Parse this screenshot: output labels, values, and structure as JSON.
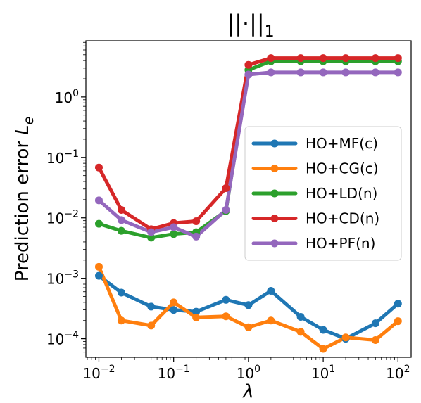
{
  "chart_data": {
    "type": "line",
    "title": "||·||",
    "title_subscript": "1",
    "xlabel": "λ",
    "ylabel": "Prediction error",
    "ylabel_symbol": "L",
    "ylabel_subscript": "e",
    "x_scale": "log",
    "y_scale": "log",
    "xlim": [
      0.0067,
      150
    ],
    "ylim": [
      4.93e-05,
      8.5
    ],
    "grid": false,
    "legend_position": "center-right",
    "x": [
      0.01,
      0.02,
      0.05,
      0.1,
      0.2,
      0.5,
      1,
      2,
      5,
      10,
      20,
      50,
      100
    ],
    "x_ticks": [
      {
        "value": 0.01,
        "base": "10",
        "exp": "−2"
      },
      {
        "value": 0.1,
        "base": "10",
        "exp": "−1"
      },
      {
        "value": 1,
        "base": "10",
        "exp": "0"
      },
      {
        "value": 10,
        "base": "10",
        "exp": "1"
      },
      {
        "value": 100,
        "base": "10",
        "exp": "2"
      }
    ],
    "y_ticks": [
      {
        "value": 0.0001,
        "base": "10",
        "exp": "−4"
      },
      {
        "value": 0.001,
        "base": "10",
        "exp": "−3"
      },
      {
        "value": 0.01,
        "base": "10",
        "exp": "−2"
      },
      {
        "value": 0.1,
        "base": "10",
        "exp": "−1"
      },
      {
        "value": 1,
        "base": "10",
        "exp": "0"
      }
    ],
    "series": [
      {
        "name": "HO+MF(c)",
        "color": "#1f77b4",
        "values": [
          0.0011,
          0.00058,
          0.00034,
          0.0003,
          0.00028,
          0.00044,
          0.00036,
          0.00062,
          0.00023,
          0.00014,
          0.0001,
          0.00018,
          0.00038
        ]
      },
      {
        "name": "HO+CG(c)",
        "color": "#ff7f0e",
        "values": [
          0.00155,
          0.0002,
          0.000165,
          0.0004,
          0.000225,
          0.000235,
          0.000155,
          0.0002,
          0.00013,
          6.8e-05,
          0.000105,
          9.5e-05,
          0.000195
        ]
      },
      {
        "name": "HO+LD(n)",
        "color": "#2ca02c",
        "values": [
          0.008,
          0.0061,
          0.0047,
          0.0054,
          0.0058,
          0.013,
          2.8,
          3.9,
          3.9,
          3.9,
          3.9,
          3.9,
          3.9
        ]
      },
      {
        "name": "HO+CD(n)",
        "color": "#d62728",
        "values": [
          0.068,
          0.0135,
          0.0065,
          0.0082,
          0.0088,
          0.031,
          3.4,
          4.4,
          4.4,
          4.4,
          4.4,
          4.4,
          4.4
        ]
      },
      {
        "name": "HO+PF(n)",
        "color": "#9467bd",
        "values": [
          0.0195,
          0.0092,
          0.0058,
          0.007,
          0.0049,
          0.0135,
          2.35,
          2.55,
          2.55,
          2.55,
          2.55,
          2.55,
          2.55
        ]
      }
    ]
  }
}
